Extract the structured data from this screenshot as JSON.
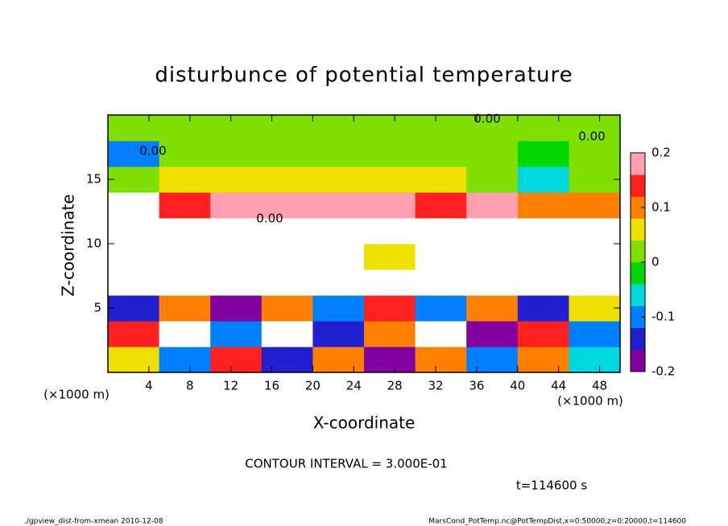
{
  "chart_data": {
    "type": "heatmap",
    "title": "disturbunce of potential temperature",
    "x_label": "X-coordinate",
    "y_label": "Z-coordinate",
    "x_unit": "(×1000 m)",
    "y_unit": "(×1000 m)",
    "xlim": [
      0,
      50
    ],
    "ylim": [
      0,
      20
    ],
    "xticks": [
      4,
      8,
      12,
      16,
      20,
      24,
      28,
      32,
      36,
      40,
      44,
      48
    ],
    "yticks": [
      5,
      10,
      15
    ],
    "x": [
      2.5,
      7.5,
      12.5,
      17.5,
      22.5,
      27.5,
      32.5,
      37.5,
      42.5,
      47.5
    ],
    "z": [
      1,
      3,
      5,
      7,
      9,
      11,
      13,
      15,
      17,
      19
    ],
    "values": [
      [
        0.05,
        -0.1,
        0.15,
        -0.15,
        0.1,
        -0.2,
        0.12,
        -0.12,
        0.08,
        -0.05
      ],
      [
        0.15,
        0.3,
        -0.1,
        0.25,
        -0.15,
        0.1,
        0.3,
        -0.2,
        0.15,
        -0.1
      ],
      [
        -0.15,
        0.1,
        -0.2,
        0.12,
        -0.1,
        0.15,
        -0.12,
        0.1,
        -0.15,
        0.05
      ],
      [
        0.3,
        0.3,
        0.3,
        0.3,
        0.3,
        0.3,
        0.3,
        0.3,
        0.3,
        0.3
      ],
      [
        0.3,
        0.3,
        0.25,
        0.3,
        0.3,
        0.05,
        0.3,
        0.25,
        0.3,
        0.3
      ],
      [
        0.3,
        0.3,
        0.3,
        0.3,
        0.3,
        0.3,
        0.3,
        0.3,
        0.3,
        0.3
      ],
      [
        0.3,
        0.15,
        0.17,
        0.16,
        0.17,
        0.16,
        0.15,
        0.18,
        0.12,
        0.1
      ],
      [
        0.02,
        0.04,
        0.05,
        0.06,
        0.05,
        0.06,
        0.05,
        0.03,
        -0.05,
        0.03
      ],
      [
        -0.1,
        0.0,
        0.0,
        0.01,
        0.0,
        0.01,
        0.0,
        0.0,
        -0.02,
        0.02
      ],
      [
        0.0,
        0.01,
        0.0,
        0.0,
        0.02,
        0.0,
        0.01,
        0.0,
        0.0,
        0.0
      ]
    ],
    "zlim": [
      -0.2,
      0.2
    ],
    "zticks": [
      -0.2,
      -0.1,
      0,
      0.1,
      0.2
    ],
    "color_scale": [
      "#8000a0",
      "#2020d0",
      "#0080ff",
      "#00d8e0",
      "#00d800",
      "#80e000",
      "#f0e000",
      "#ff8000",
      "#ff2020",
      "#ffa0b0"
    ],
    "annotations": [
      "0.00",
      "0.00",
      "0.00",
      "0.00"
    ],
    "contour_interval": "CONTOUR INTERVAL = 3.000E-01",
    "time": "t=114600 s",
    "footer_left": "./gpview_dist-from-xmean  2010-12-08",
    "footer_right": "MarsCond_PotTemp.nc@PotTempDist,x=0:50000,z=0:20000,t=114600"
  }
}
